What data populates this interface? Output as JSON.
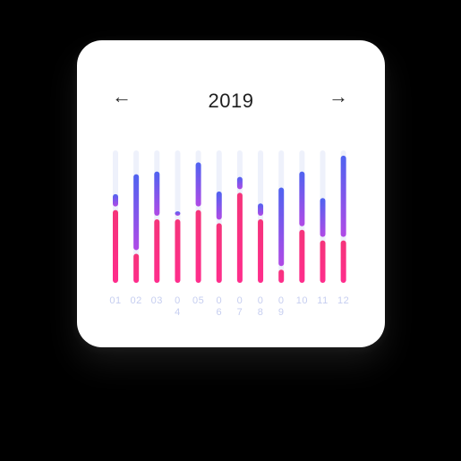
{
  "header": {
    "prev_icon": "arrow-left-icon",
    "prev_glyph": "←",
    "title": "2019",
    "next_icon": "arrow-right-icon",
    "next_glyph": "→"
  },
  "colors": {
    "background": "#000000",
    "card": "#ffffff",
    "track": "#eef1fb",
    "pink": "#ff2d8c",
    "pink_deep": "#f5347a",
    "violet": "#b04ae6",
    "blue": "#4f63f0",
    "tick_label": "#c6cef0"
  },
  "chart_data": {
    "type": "bar",
    "stacked": true,
    "categories": [
      "01",
      "02",
      "03",
      "0\n4",
      "05",
      "0\n6",
      "0\n7",
      "0\n8",
      "0\n9",
      "10",
      "11",
      "12"
    ],
    "ylim": [
      0,
      100
    ],
    "grid": false,
    "series": [
      {
        "values": [
          55,
          22,
          48,
          48,
          55,
          45,
          68,
          48,
          10,
          40,
          32,
          32
        ]
      },
      {
        "values": [
          12,
          60,
          36,
          6,
          36,
          24,
          12,
          12,
          62,
          44,
          32,
          64
        ]
      }
    ]
  }
}
